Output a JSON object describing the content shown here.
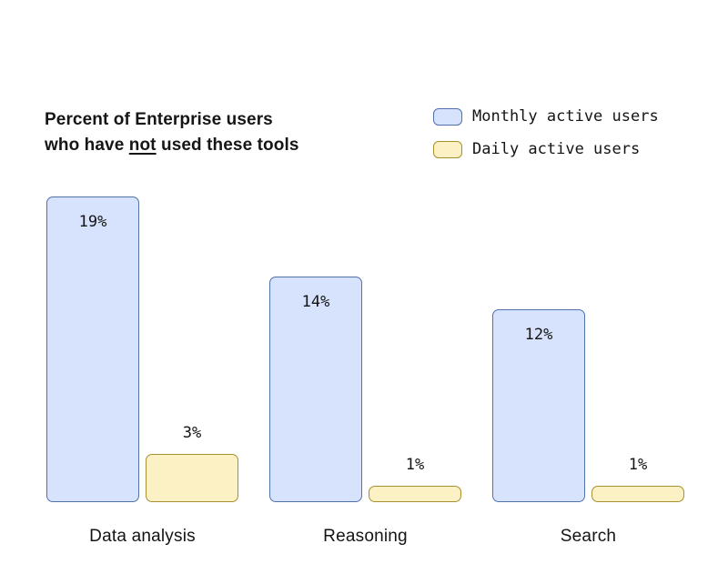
{
  "title": {
    "line1": "Percent of Enterprise users",
    "line2_prefix": "who have ",
    "line2_underlined": "not",
    "line2_suffix": " used these tools"
  },
  "legend": {
    "items": [
      {
        "label": "Monthly active users",
        "fill": "#d7e3fc",
        "border": "#4f72ac"
      },
      {
        "label": "Daily active users",
        "fill": "#fcf1c4",
        "border": "#a8902f"
      }
    ]
  },
  "chart_data": {
    "type": "bar",
    "title": "Percent of Enterprise users who have not used these tools",
    "categories": [
      "Data analysis",
      "Reasoning",
      "Search"
    ],
    "series": [
      {
        "name": "Monthly active users",
        "values": [
          19,
          14,
          12
        ],
        "labels": [
          "19%",
          "14%",
          "12%"
        ],
        "fill": "#d7e3fc",
        "border": "#4f72ac",
        "value_label_position": "inside-top"
      },
      {
        "name": "Daily active users",
        "values": [
          3,
          1,
          1
        ],
        "labels": [
          "3%",
          "1%",
          "1%"
        ],
        "fill": "#fcf1c4",
        "border": "#a8902f",
        "value_label_position": "above"
      }
    ],
    "unit": "percent",
    "ylim": [
      0,
      19
    ],
    "xlabel": "",
    "ylabel": "",
    "grid": false,
    "axes_visible": false,
    "legend_position": "top-right"
  }
}
